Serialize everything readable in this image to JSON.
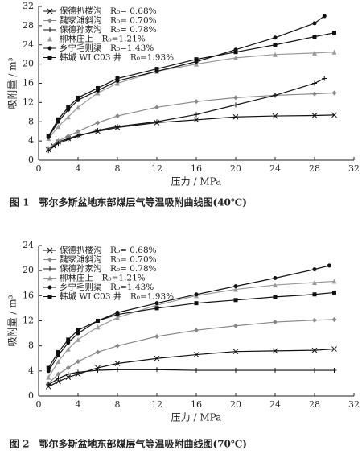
{
  "chart_data": [
    {
      "type": "line",
      "caption": "图 1　鄂尔多斯盆地东部煤层气等温吸附曲线图(40℃)",
      "x_label": "压力 / MPa",
      "y_label": "吸附量 / m³",
      "xlim": [
        0,
        32
      ],
      "xticks": [
        0,
        4,
        8,
        12,
        16,
        20,
        24,
        28,
        32
      ],
      "ylim": [
        0,
        32
      ],
      "yticks": [
        0,
        4,
        8,
        12,
        16,
        20,
        24,
        28,
        32
      ],
      "series": [
        {
          "name": "保德扒楼沟　R₀= 0.68%",
          "color": "#111",
          "marker": "x",
          "x": [
            1,
            1.5,
            2,
            3,
            4,
            6,
            8,
            12,
            16,
            20,
            24,
            28,
            30
          ],
          "values": [
            2.2,
            3,
            3.8,
            4.5,
            5.2,
            6,
            6.8,
            7.8,
            8.4,
            9,
            9.2,
            9.3,
            9.4
          ]
        },
        {
          "name": "魏家滩斜沟　R₀= 0.70%",
          "color": "#888",
          "marker": "diamond",
          "x": [
            1,
            2,
            3,
            4,
            6,
            8,
            12,
            16,
            20,
            24,
            28,
            30
          ],
          "values": [
            2.5,
            4,
            5,
            6,
            7.8,
            9.2,
            11,
            12.2,
            13,
            13.5,
            13.8,
            14
          ]
        },
        {
          "name": "保德孙家沟　R₀= 0.78%",
          "color": "#111",
          "marker": "plus",
          "x": [
            1,
            2,
            3,
            4,
            6,
            8,
            12,
            16,
            20,
            24,
            28,
            29
          ],
          "values": [
            2,
            3.5,
            4.3,
            5,
            6.2,
            7,
            8,
            9.5,
            11.5,
            13.5,
            16,
            17
          ]
        },
        {
          "name": "柳林庄上　R₀=1.21%",
          "color": "#999",
          "marker": "triangle",
          "x": [
            1,
            2,
            3,
            4,
            6,
            8,
            12,
            16,
            20,
            24,
            28,
            30
          ],
          "values": [
            4.5,
            7,
            9,
            11,
            14,
            16,
            18.5,
            20,
            21.3,
            22,
            22.3,
            22.5
          ]
        },
        {
          "name": "乡宁毛则渠　R₀=1.43%",
          "color": "#111",
          "marker": "circle",
          "x": [
            1,
            2,
            3,
            4,
            6,
            8,
            12,
            16,
            20,
            24,
            28,
            29
          ],
          "values": [
            4.8,
            8,
            10.5,
            12.5,
            14.5,
            16.5,
            18.5,
            20.5,
            23,
            25.5,
            28.5,
            30
          ]
        },
        {
          "name": "韩城 WLC03 井　R₀=1.93%",
          "color": "#111",
          "marker": "square",
          "x": [
            1,
            2,
            3,
            4,
            6,
            8,
            12,
            16,
            20,
            24,
            28,
            30
          ],
          "values": [
            5,
            8.5,
            11,
            13,
            15,
            17,
            19,
            21,
            22.5,
            24,
            25.7,
            26.5
          ]
        }
      ]
    },
    {
      "type": "line",
      "caption": "图 2　鄂尔多斯盆地东部煤层气等温吸附曲线图(70℃)",
      "x_label": "压力 / MPa",
      "y_label": "吸附量 / m³",
      "xlim": [
        0,
        32
      ],
      "xticks": [
        0,
        4,
        8,
        12,
        16,
        20,
        24,
        28,
        32
      ],
      "ylim": [
        0,
        24
      ],
      "yticks": [
        0,
        4,
        8,
        12,
        16,
        20,
        24
      ],
      "series": [
        {
          "name": "保德扒楼沟　R₀= 0.68%",
          "color": "#111",
          "marker": "x",
          "x": [
            1,
            2,
            3,
            4,
            6,
            8,
            12,
            16,
            20,
            24,
            28,
            30
          ],
          "values": [
            1.5,
            2.3,
            3,
            3.5,
            4.5,
            5.2,
            6,
            6.6,
            7.1,
            7.2,
            7.3,
            7.5
          ]
        },
        {
          "name": "魏家滩斜沟　R₀= 0.70%",
          "color": "#888",
          "marker": "diamond",
          "x": [
            1,
            2,
            3,
            4,
            6,
            8,
            12,
            16,
            20,
            24,
            28,
            30
          ],
          "values": [
            2,
            3.5,
            4.5,
            5.5,
            7,
            8,
            9.5,
            10.5,
            11.2,
            11.8,
            12.1,
            12.2
          ]
        },
        {
          "name": "保德孙家沟　R₀= 0.78%",
          "color": "#111",
          "marker": "plus",
          "x": [
            1,
            2,
            3,
            4,
            6,
            8,
            12,
            16,
            20,
            24,
            28,
            30
          ],
          "values": [
            1.8,
            2.8,
            3.5,
            3.8,
            4.1,
            4.2,
            4.2,
            4.1,
            4.1,
            4.1,
            4.1,
            4.1
          ]
        },
        {
          "name": "柳林庄上　R₀=1.21%",
          "color": "#999",
          "marker": "triangle",
          "x": [
            1,
            2,
            3,
            4,
            6,
            8,
            12,
            16,
            20,
            24,
            28,
            30
          ],
          "values": [
            3,
            5.5,
            7.5,
            9,
            11,
            12.5,
            14.5,
            16,
            17,
            17.7,
            18.1,
            18.3
          ]
        },
        {
          "name": "乡宁毛则渠　R₀=1.43%",
          "color": "#111",
          "marker": "circle",
          "x": [
            1,
            2,
            3,
            4,
            6,
            8,
            12,
            16,
            20,
            24,
            28,
            29.5
          ],
          "values": [
            4,
            6.5,
            8.5,
            10,
            12,
            13.3,
            14.8,
            16.2,
            17.5,
            18.8,
            20.2,
            20.8
          ]
        },
        {
          "name": "韩城 WLC03 井　R₀=1.93%",
          "color": "#111",
          "marker": "square",
          "x": [
            1,
            2,
            3,
            4,
            6,
            8,
            12,
            16,
            20,
            24,
            28,
            30
          ],
          "values": [
            4.5,
            7,
            9,
            10.5,
            12,
            13,
            14,
            14.8,
            15.3,
            15.8,
            16.2,
            16.5
          ]
        }
      ]
    }
  ]
}
